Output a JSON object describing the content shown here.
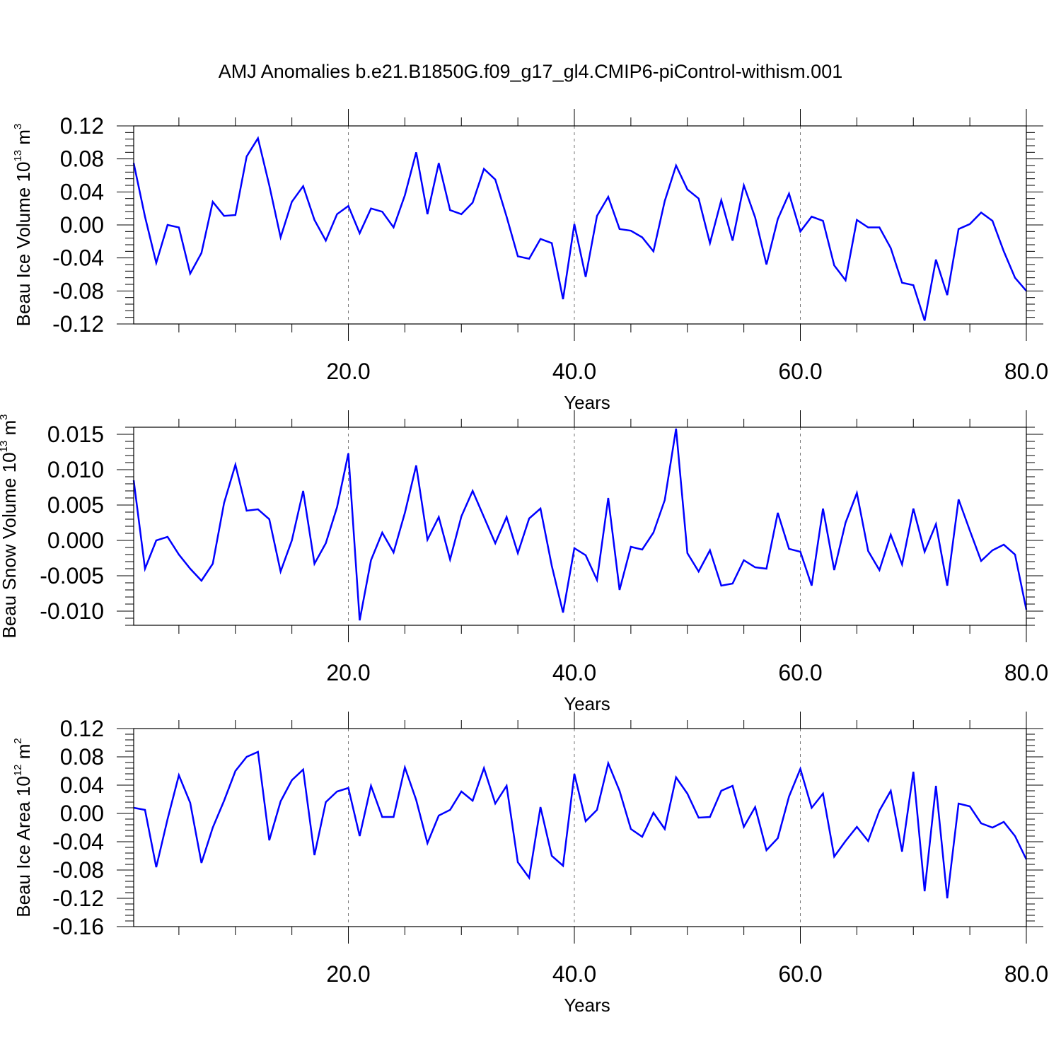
{
  "title": "AMJ Anomalies b.e21.B1850G.f09_g17_gl4.CMIP6-piControl-withism.001",
  "colors": {
    "line": "#0000ff",
    "axes": "#000000",
    "grid": "#777777"
  },
  "chart_data": [
    {
      "type": "line",
      "ylabel": {
        "main": "Beau Ice Volume 10",
        "exp": "13",
        "unit": " m",
        "unit_exp": "3"
      },
      "xlabel": "Years",
      "xlim": [
        1,
        80
      ],
      "ylim": [
        -0.12,
        0.12
      ],
      "yticks": [
        -0.12,
        -0.08,
        -0.04,
        0.0,
        0.04,
        0.08,
        0.12
      ],
      "ytick_labels": [
        "-0.12",
        "-0.08",
        "-0.04",
        "0.00",
        "0.04",
        "0.08",
        "0.12"
      ],
      "xticks": [
        20,
        40,
        60,
        80
      ],
      "xtick_labels": [
        "20.0",
        "40.0",
        "60.0",
        "80.0"
      ],
      "grid": "dashed vertical at 20, 40, 60",
      "values": [
        0.075,
        0.01,
        -0.046,
        0.0,
        -0.003,
        -0.059,
        -0.034,
        0.028,
        0.011,
        0.012,
        0.083,
        0.105,
        0.048,
        -0.015,
        0.028,
        0.047,
        0.006,
        -0.019,
        0.013,
        0.023,
        -0.01,
        0.02,
        0.016,
        -0.003,
        0.036,
        0.088,
        0.013,
        0.075,
        0.018,
        0.013,
        0.027,
        0.068,
        0.055,
        0.01,
        -0.038,
        -0.041,
        -0.017,
        -0.022,
        -0.09,
        0.001,
        -0.063,
        0.011,
        0.034,
        -0.005,
        -0.007,
        -0.015,
        -0.032,
        0.029,
        0.072,
        0.043,
        0.032,
        -0.022,
        0.03,
        -0.019,
        0.048,
        0.009,
        -0.048,
        0.007,
        0.038,
        -0.008,
        0.01,
        0.005,
        -0.049,
        -0.067,
        0.006,
        -0.003,
        -0.003,
        -0.028,
        -0.07,
        -0.073,
        -0.116,
        -0.042,
        -0.085,
        -0.005,
        0.001,
        0.015,
        0.005,
        -0.032,
        -0.064,
        -0.08
      ]
    },
    {
      "type": "line",
      "ylabel": {
        "main": "Beau Snow Volume 10",
        "exp": "13",
        "unit": " m",
        "unit_exp": "3"
      },
      "xlabel": "Years",
      "xlim": [
        1,
        80
      ],
      "ylim": [
        -0.012,
        0.016
      ],
      "yticks": [
        -0.01,
        -0.005,
        0.0,
        0.005,
        0.01,
        0.015
      ],
      "ytick_labels": [
        "-0.010",
        "-0.005",
        "0.000",
        "0.005",
        "0.010",
        "0.015"
      ],
      "xticks": [
        20,
        40,
        60,
        80
      ],
      "xtick_labels": [
        "20.0",
        "40.0",
        "60.0",
        "80.0"
      ],
      "grid": "dashed vertical at 20, 40, 60",
      "values": [
        0.0085,
        -0.004,
        0.0,
        0.0005,
        -0.002,
        -0.004,
        -0.0057,
        -0.0033,
        0.0053,
        0.0107,
        0.0042,
        0.0044,
        0.003,
        -0.0044,
        0.0,
        0.007,
        -0.0033,
        -0.0004,
        0.0047,
        0.0123,
        -0.0113,
        -0.0028,
        0.0011,
        -0.0017,
        0.0039,
        0.0106,
        0.0001,
        0.0033,
        -0.0027,
        0.0034,
        0.007,
        0.0033,
        -0.0004,
        0.0033,
        -0.0018,
        0.0031,
        0.0045,
        -0.0036,
        -0.0102,
        -0.0011,
        -0.0021,
        -0.0056,
        0.006,
        -0.007,
        -0.0009,
        -0.0013,
        0.0011,
        0.0057,
        0.0158,
        -0.0018,
        -0.0044,
        -0.0014,
        -0.0064,
        -0.0061,
        -0.0028,
        -0.0038,
        -0.004,
        0.0039,
        -0.0012,
        -0.0016,
        -0.0064,
        0.0045,
        -0.0042,
        0.0025,
        0.0067,
        -0.0015,
        -0.0042,
        0.0008,
        -0.0034,
        0.0045,
        -0.0016,
        0.0023,
        -0.0064,
        0.0058,
        0.0014,
        -0.0029,
        -0.0014,
        -0.0006,
        -0.002,
        -0.0098
      ]
    },
    {
      "type": "line",
      "ylabel": {
        "main": "Beau Ice Area 10",
        "exp": "12",
        "unit": " m",
        "unit_exp": "2"
      },
      "xlabel": "Years",
      "xlim": [
        1,
        80
      ],
      "ylim": [
        -0.16,
        0.12
      ],
      "yticks": [
        -0.16,
        -0.12,
        -0.08,
        -0.04,
        0.0,
        0.04,
        0.08,
        0.12
      ],
      "ytick_labels": [
        "-0.16",
        "-0.12",
        "-0.08",
        "-0.04",
        "0.00",
        "0.04",
        "0.08",
        "0.12"
      ],
      "xticks": [
        20,
        40,
        60,
        80
      ],
      "xtick_labels": [
        "20.0",
        "40.0",
        "60.0",
        "80.0"
      ],
      "grid": "dashed vertical at 20, 40, 60",
      "values": [
        0.008,
        0.005,
        -0.076,
        -0.008,
        0.054,
        0.015,
        -0.07,
        -0.02,
        0.018,
        0.06,
        0.08,
        0.087,
        -0.038,
        0.017,
        0.047,
        0.062,
        -0.059,
        0.016,
        0.031,
        0.036,
        -0.032,
        0.039,
        -0.005,
        -0.005,
        0.065,
        0.019,
        -0.042,
        -0.003,
        0.005,
        0.031,
        0.018,
        0.064,
        0.014,
        0.039,
        -0.069,
        -0.091,
        0.009,
        -0.06,
        -0.074,
        0.056,
        -0.011,
        0.005,
        0.071,
        0.032,
        -0.022,
        -0.033,
        0.001,
        -0.022,
        0.051,
        0.028,
        -0.006,
        -0.005,
        0.032,
        0.039,
        -0.019,
        0.009,
        -0.052,
        -0.035,
        0.024,
        0.063,
        0.008,
        0.028,
        -0.061,
        -0.039,
        -0.019,
        -0.039,
        0.004,
        0.032,
        -0.054,
        0.059,
        -0.11,
        0.039,
        -0.12,
        0.014,
        0.01,
        -0.014,
        -0.02,
        -0.012,
        -0.032,
        -0.065
      ]
    }
  ]
}
